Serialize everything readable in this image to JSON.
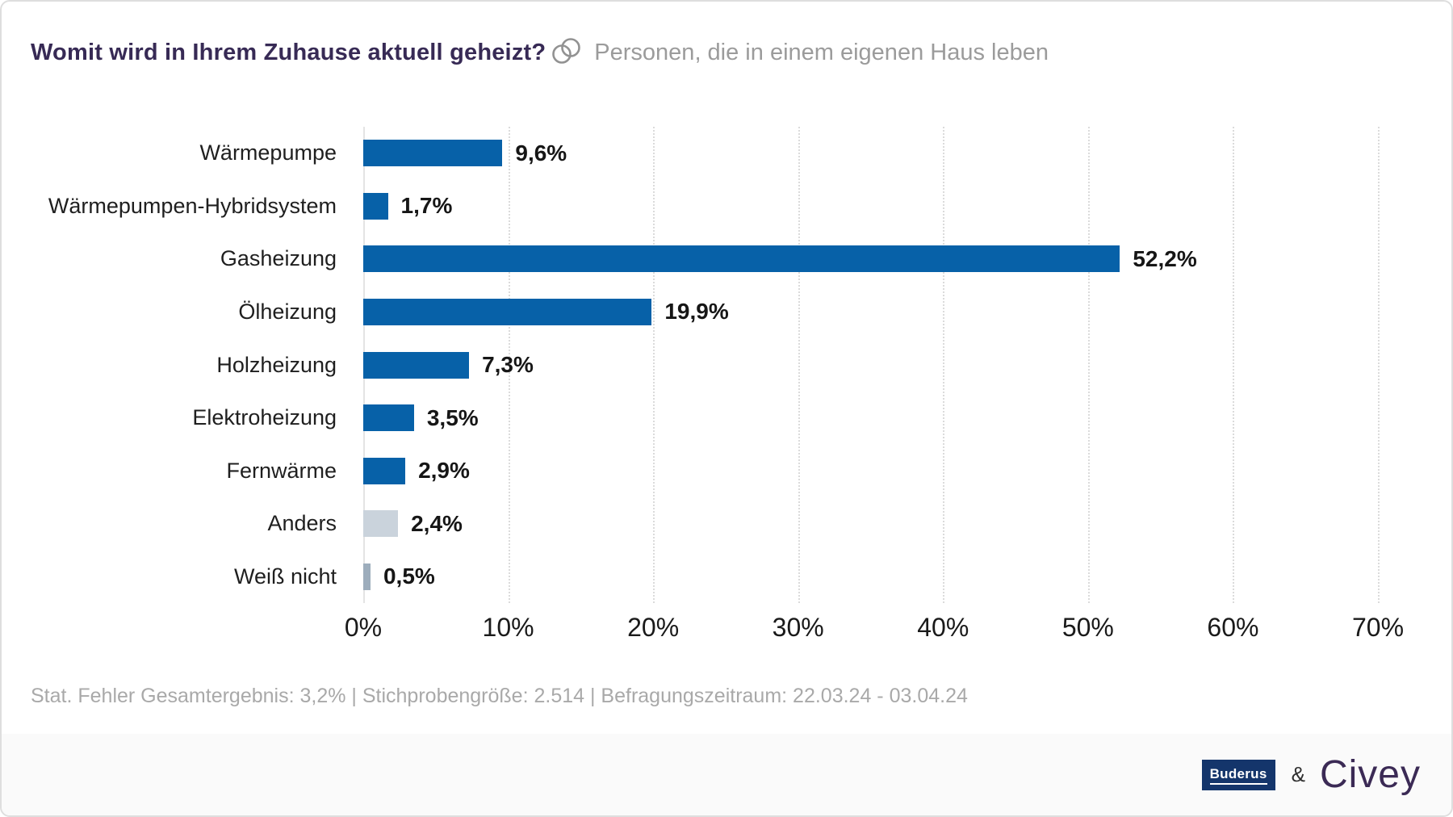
{
  "header": {
    "title": "Womit wird in Ihrem Zuhause aktuell geheizt?",
    "audience": "Personen, die in einem eigenen Haus leben"
  },
  "chart_data": {
    "type": "bar",
    "orientation": "horizontal",
    "title": "Womit wird in Ihrem Zuhause aktuell geheizt?",
    "subtitle": "Personen, die in einem eigenen Haus leben",
    "categories": [
      "Wärmepumpe",
      "Wärmepumpen-Hybridsystem",
      "Gasheizung",
      "Ölheizung",
      "Holzheizung",
      "Elektroheizung",
      "Fernwärme",
      "Anders",
      "Weiß nicht"
    ],
    "values": [
      9.6,
      1.7,
      52.2,
      19.9,
      7.3,
      3.5,
      2.9,
      2.4,
      0.5
    ],
    "value_labels": [
      "9,6%",
      "1,7%",
      "52,2%",
      "19,9%",
      "7,3%",
      "3,5%",
      "2,9%",
      "2,4%",
      "0,5%"
    ],
    "bar_colors": [
      "#0761A8",
      "#0761A8",
      "#0761A8",
      "#0761A8",
      "#0761A8",
      "#0761A8",
      "#0761A8",
      "#CAD3DC",
      "#9DADBC"
    ],
    "x_ticks": [
      "0%",
      "10%",
      "20%",
      "30%",
      "40%",
      "50%",
      "60%",
      "70%"
    ],
    "xlim": [
      0,
      70
    ],
    "grid": "vertical-dotted",
    "legend": "none",
    "colors": {
      "primary": "#0761A8",
      "neutral_light": "#CAD3DC",
      "neutral_dark": "#9DADBC"
    }
  },
  "footnote": "Stat. Fehler Gesamtergebnis: 3,2% | Stichprobengröße: 2.514 | Befragungszeitraum: 22.03.24 - 03.04.24",
  "branding": {
    "partner_label": "Buderus",
    "ampersand": "&",
    "brand_label": "Civey"
  }
}
